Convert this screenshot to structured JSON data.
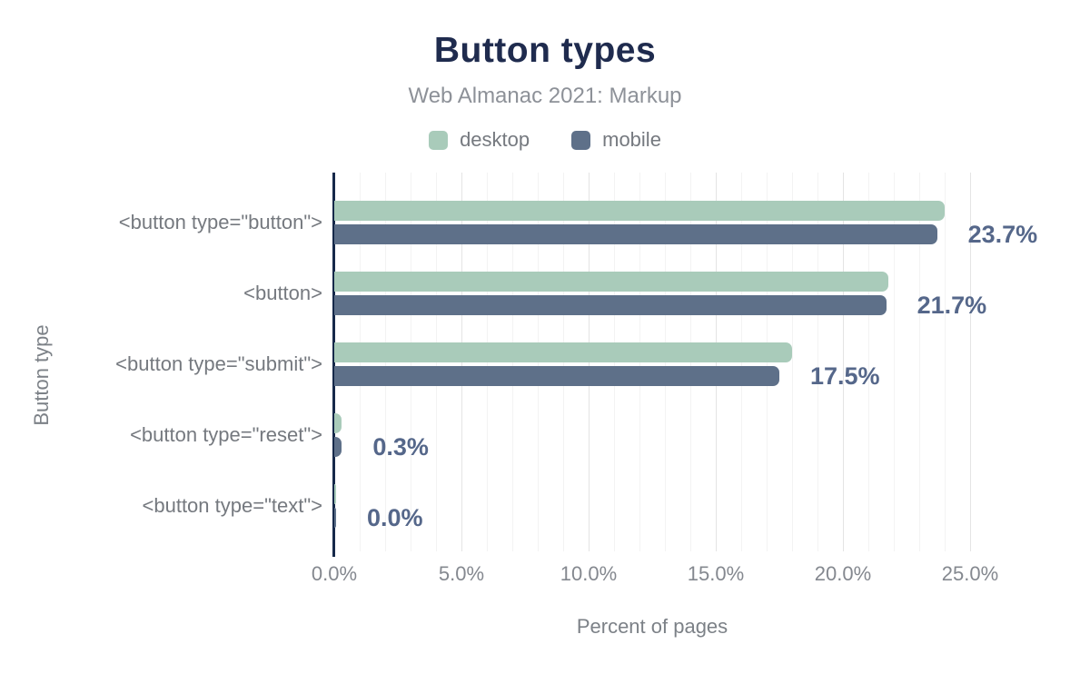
{
  "header": {
    "title": "Button types",
    "subtitle": "Web Almanac 2021: Markup"
  },
  "legend": {
    "items": [
      {
        "label": "desktop",
        "color": "#a9cbba"
      },
      {
        "label": "mobile",
        "color": "#5e7089"
      }
    ]
  },
  "colors": {
    "title_text": "#1f2b4e",
    "axis_line": "#16294a",
    "desktop_bar": "#a9cbba",
    "mobile_bar": "#5e7089",
    "value_label_text": "#55678a",
    "muted_text": "#7c8187",
    "grid_minor": "#f3f3f3",
    "grid_major": "#e4e4e4"
  },
  "chart_data": {
    "type": "bar",
    "orientation": "horizontal",
    "title": "Button types",
    "subtitle": "Web Almanac 2021: Markup",
    "xlabel": "Percent of pages",
    "ylabel": "Button type",
    "categories": [
      "<button type=\"button\">",
      "<button>",
      "<button type=\"submit\">",
      "<button type=\"reset\">",
      "<button type=\"text\">"
    ],
    "series": [
      {
        "name": "desktop",
        "color": "#a9cbba",
        "values": [
          24.0,
          21.8,
          18.0,
          0.3,
          0.0
        ]
      },
      {
        "name": "mobile",
        "color": "#5e7089",
        "values": [
          23.7,
          21.7,
          17.5,
          0.3,
          0.0
        ]
      }
    ],
    "value_labels": [
      "23.7%",
      "21.7%",
      "17.5%",
      "0.3%",
      "0.0%"
    ],
    "xticks": [
      "0.0%",
      "5.0%",
      "10.0%",
      "15.0%",
      "20.0%",
      "25.0%"
    ],
    "xlim": [
      0,
      25
    ],
    "grid": "vertical; minor every 1%, major every 5%",
    "legend_position": "top"
  }
}
